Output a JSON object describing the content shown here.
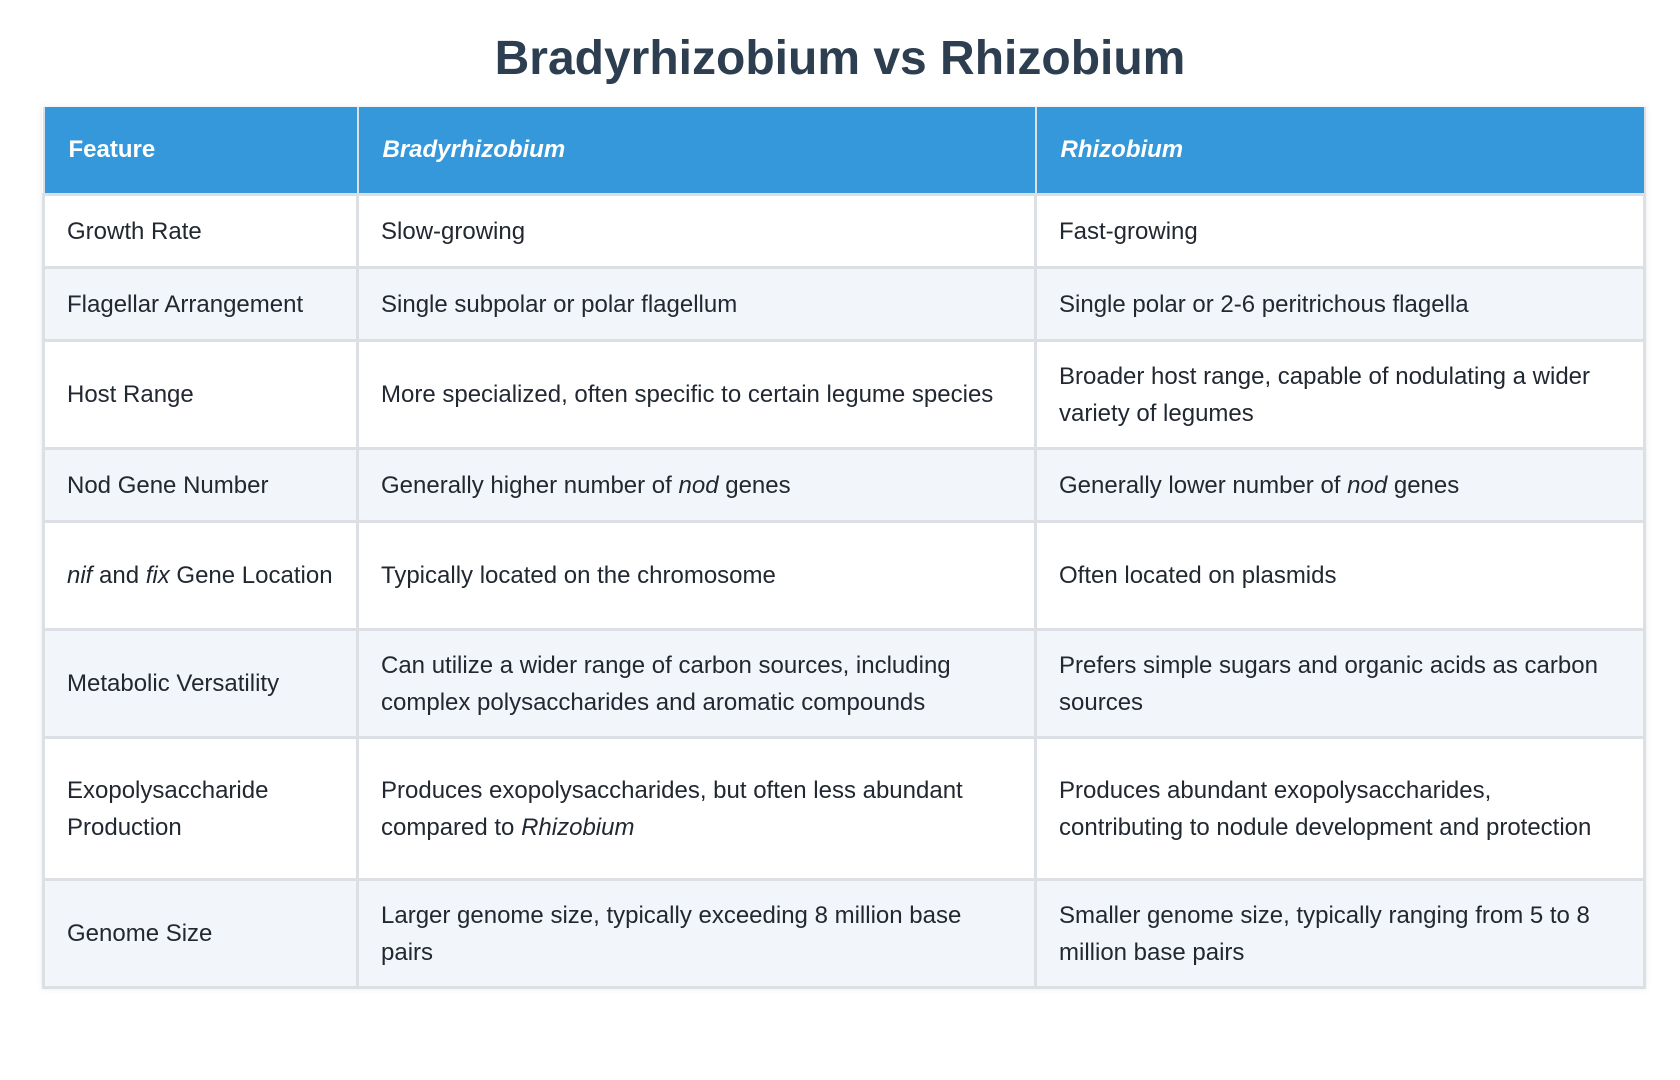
{
  "title": "Bradyrhizobium vs Rhizobium",
  "table": {
    "headers": [
      "Feature",
      "Bradyrhizobium",
      "Rhizobium"
    ],
    "rows": [
      {
        "feature": "Growth Rate",
        "bradyrhizobium": "Slow-growing",
        "rhizobium": "Fast-growing"
      },
      {
        "feature": "Flagellar Arrangement",
        "bradyrhizobium": "Single subpolar or polar flagellum",
        "rhizobium": "Single polar or 2-6 peritrichous flagella"
      },
      {
        "feature": "Host Range",
        "bradyrhizobium": "More specialized, often specific to certain legume species",
        "rhizobium": "Broader host range, capable of nodulating a wider variety of legumes"
      },
      {
        "feature": "Nod Gene Number",
        "bradyrhizobium": {
          "pre": "Generally higher number of ",
          "it": "nod",
          "post": " genes"
        },
        "rhizobium": {
          "pre": "Generally lower number of ",
          "it": "nod",
          "post": " genes"
        }
      },
      {
        "feature": {
          "it1": "nif",
          "mid": " and ",
          "it2": "fix",
          "post": " Gene Location"
        },
        "bradyrhizobium": "Typically located on the chromosome",
        "rhizobium": "Often located on plasmids"
      },
      {
        "feature": "Metabolic Versatility",
        "bradyrhizobium": "Can utilize a wider range of carbon sources, including complex polysaccharides and aromatic compounds",
        "rhizobium": "Prefers simple sugars and organic acids as carbon sources"
      },
      {
        "feature": "Exopolysaccharide Production",
        "bradyrhizobium": {
          "pre": "Produces exopolysaccharides, but often less abundant compared to ",
          "it": "Rhizobium",
          "post": ""
        },
        "rhizobium": "Produces abundant exopolysaccharides, contributing to nodule development and protection"
      },
      {
        "feature": "Genome Size",
        "bradyrhizobium": "Larger genome size, typically exceeding 8 million base pairs",
        "rhizobium": "Smaller genome size, typically ranging from 5 to 8 million base pairs"
      }
    ]
  },
  "colors": {
    "title": "#2c3e50",
    "header_bg": "#3498db",
    "header_text": "#ffffff",
    "row_alt_bg": "#f2f5f9",
    "border": "#dcdfe3"
  }
}
